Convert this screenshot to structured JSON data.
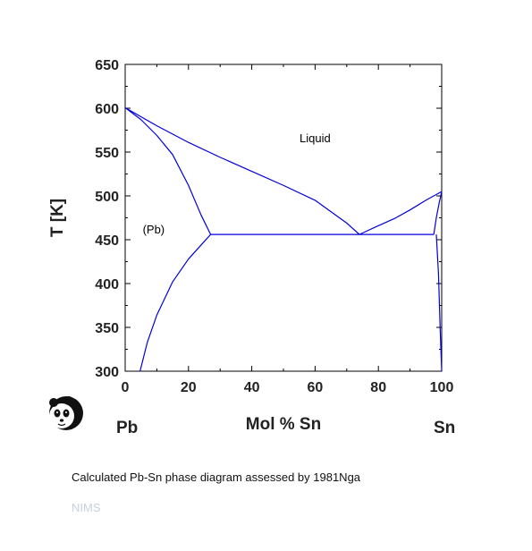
{
  "chart_data": {
    "type": "line",
    "title": "",
    "xlabel": "Mol % Sn",
    "ylabel": "T [K]",
    "xlim": [
      0,
      100
    ],
    "ylim": [
      300,
      650
    ],
    "x_ticks": [
      0,
      20,
      40,
      60,
      80,
      100
    ],
    "y_ticks": [
      300,
      350,
      400,
      450,
      500,
      550,
      600,
      650
    ],
    "x_tick_labels": [
      "0",
      "20",
      "40",
      "60",
      "80",
      "100"
    ],
    "y_tick_labels": [
      "300",
      "350",
      "400",
      "450",
      "500",
      "550",
      "600",
      "650"
    ],
    "grid": false,
    "line_color": "#0000dd",
    "end_labels": {
      "left": "Pb",
      "right": "Sn"
    },
    "regions": [
      {
        "label": "Liquid",
        "x": 60,
        "y": 561
      },
      {
        "label": "(Pb)",
        "x": 9,
        "y": 457
      }
    ],
    "series": [
      {
        "x": [
          0,
          10,
          20,
          30,
          40,
          50,
          60,
          70,
          74
        ],
        "y": [
          600.6,
          580,
          561,
          544,
          528,
          512,
          495,
          469,
          456
        ]
      },
      {
        "x": [
          74,
          80,
          85,
          90,
          95,
          100
        ],
        "y": [
          456,
          466,
          474,
          484,
          495,
          505
        ]
      },
      {
        "x": [
          0,
          5,
          10,
          15,
          20,
          24,
          27
        ],
        "y": [
          600.6,
          587,
          569,
          547,
          512,
          478,
          456
        ]
      },
      {
        "x": [
          4.7,
          7,
          10,
          15,
          20,
          25,
          27
        ],
        "y": [
          300,
          333,
          364,
          402,
          428,
          448,
          456
        ]
      },
      {
        "x": [
          27,
          97.5
        ],
        "y": [
          456,
          456
        ]
      },
      {
        "x": [
          97.5,
          98.3,
          99.2,
          100
        ],
        "y": [
          456,
          475,
          492,
          505
        ]
      },
      {
        "x": [
          98.3,
          99.0,
          99.5,
          100
        ],
        "y": [
          456,
          410,
          350,
          300
        ]
      }
    ]
  },
  "caption": "Calculated Pb-Sn phase diagram assessed by 1981Nga",
  "credit": "NIMS",
  "logo_icon": "panda-icon"
}
